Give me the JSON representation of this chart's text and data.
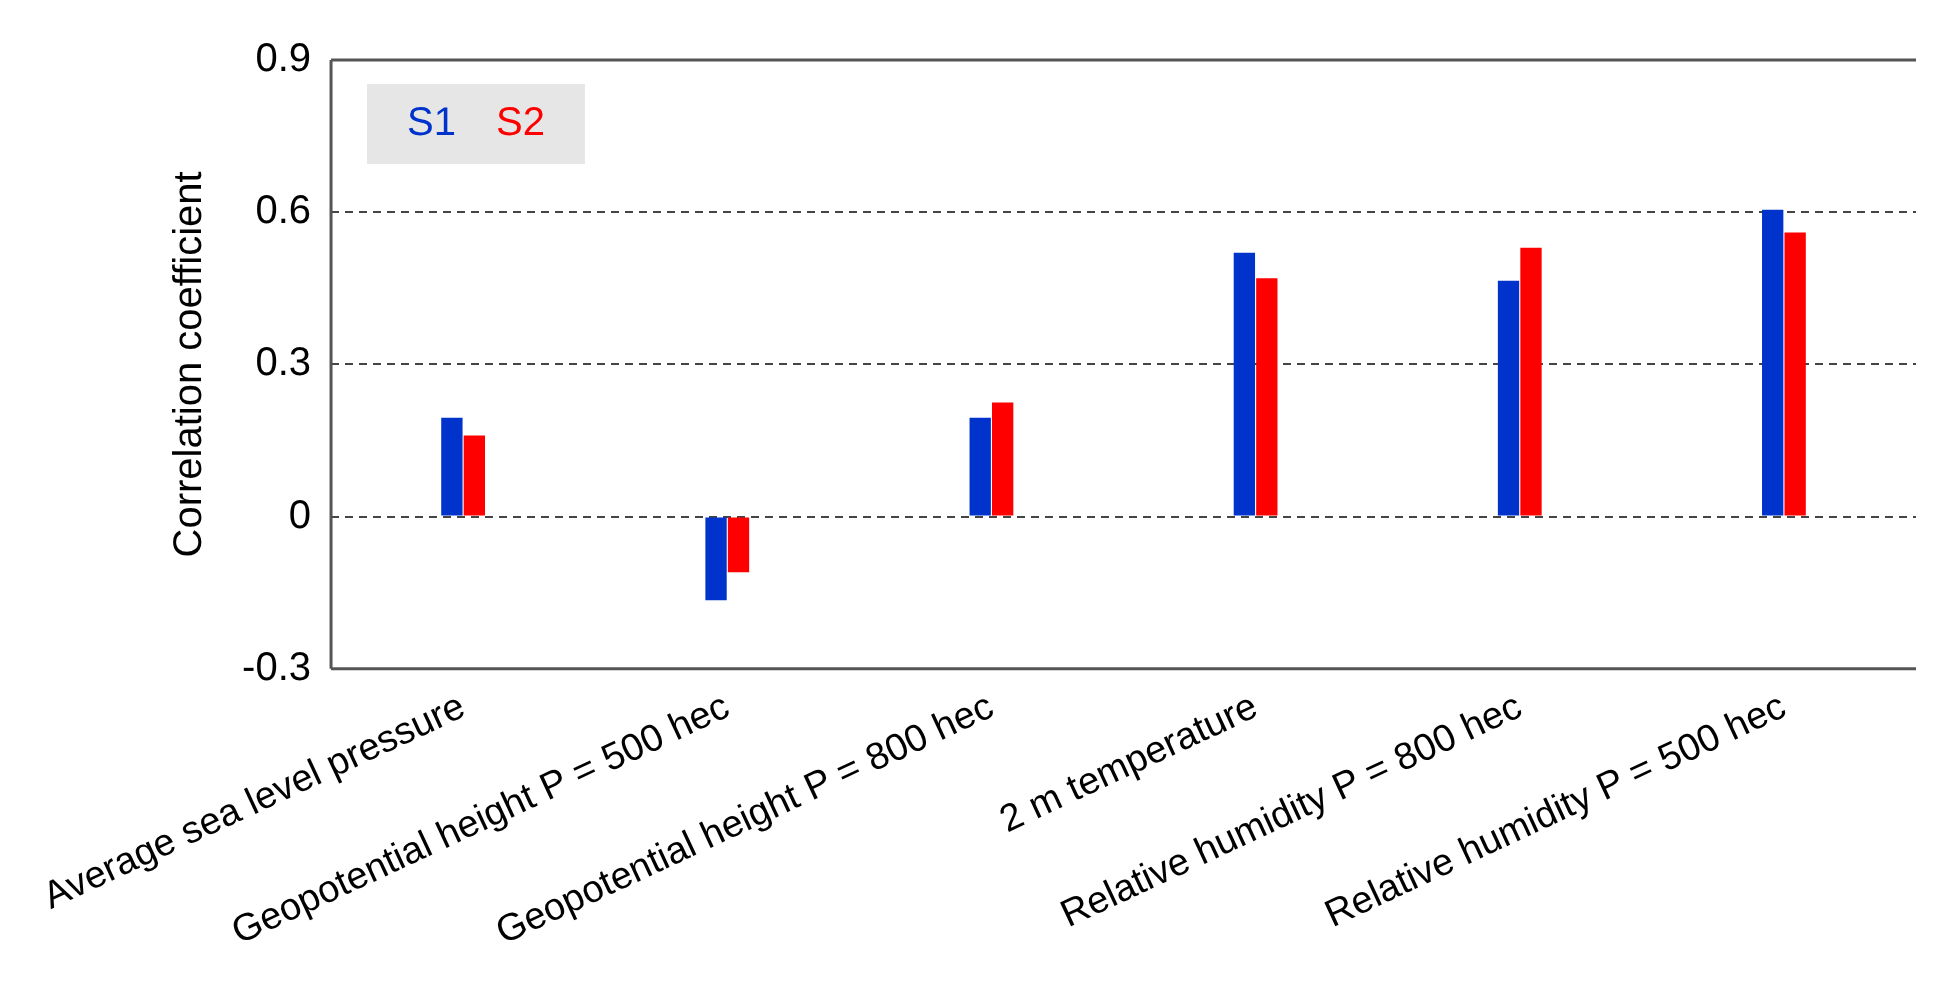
{
  "chart_data": {
    "type": "bar",
    "ylabel": "Correlation coefficient",
    "categories": [
      "Average sea level pressure",
      "Geopotential height P = 500 hec",
      "Geopotential height P = 800 hec",
      "2 m temperature",
      "Relative humidity P = 800 hec",
      "Relative humidity P = 500 hec"
    ],
    "series": [
      {
        "name": "S1",
        "color": "#0033cc",
        "values": [
          0.195,
          -0.165,
          0.195,
          0.52,
          0.465,
          0.605
        ]
      },
      {
        "name": "S2",
        "color": "#ff0000",
        "values": [
          0.16,
          -0.11,
          0.225,
          0.47,
          0.53,
          0.56
        ]
      }
    ],
    "ylim": [
      -0.3,
      0.9
    ],
    "yticks": [
      -0.3,
      0,
      0.3,
      0.6,
      0.9
    ],
    "grid": "y",
    "line_style": "dashed",
    "legend": "top left"
  }
}
